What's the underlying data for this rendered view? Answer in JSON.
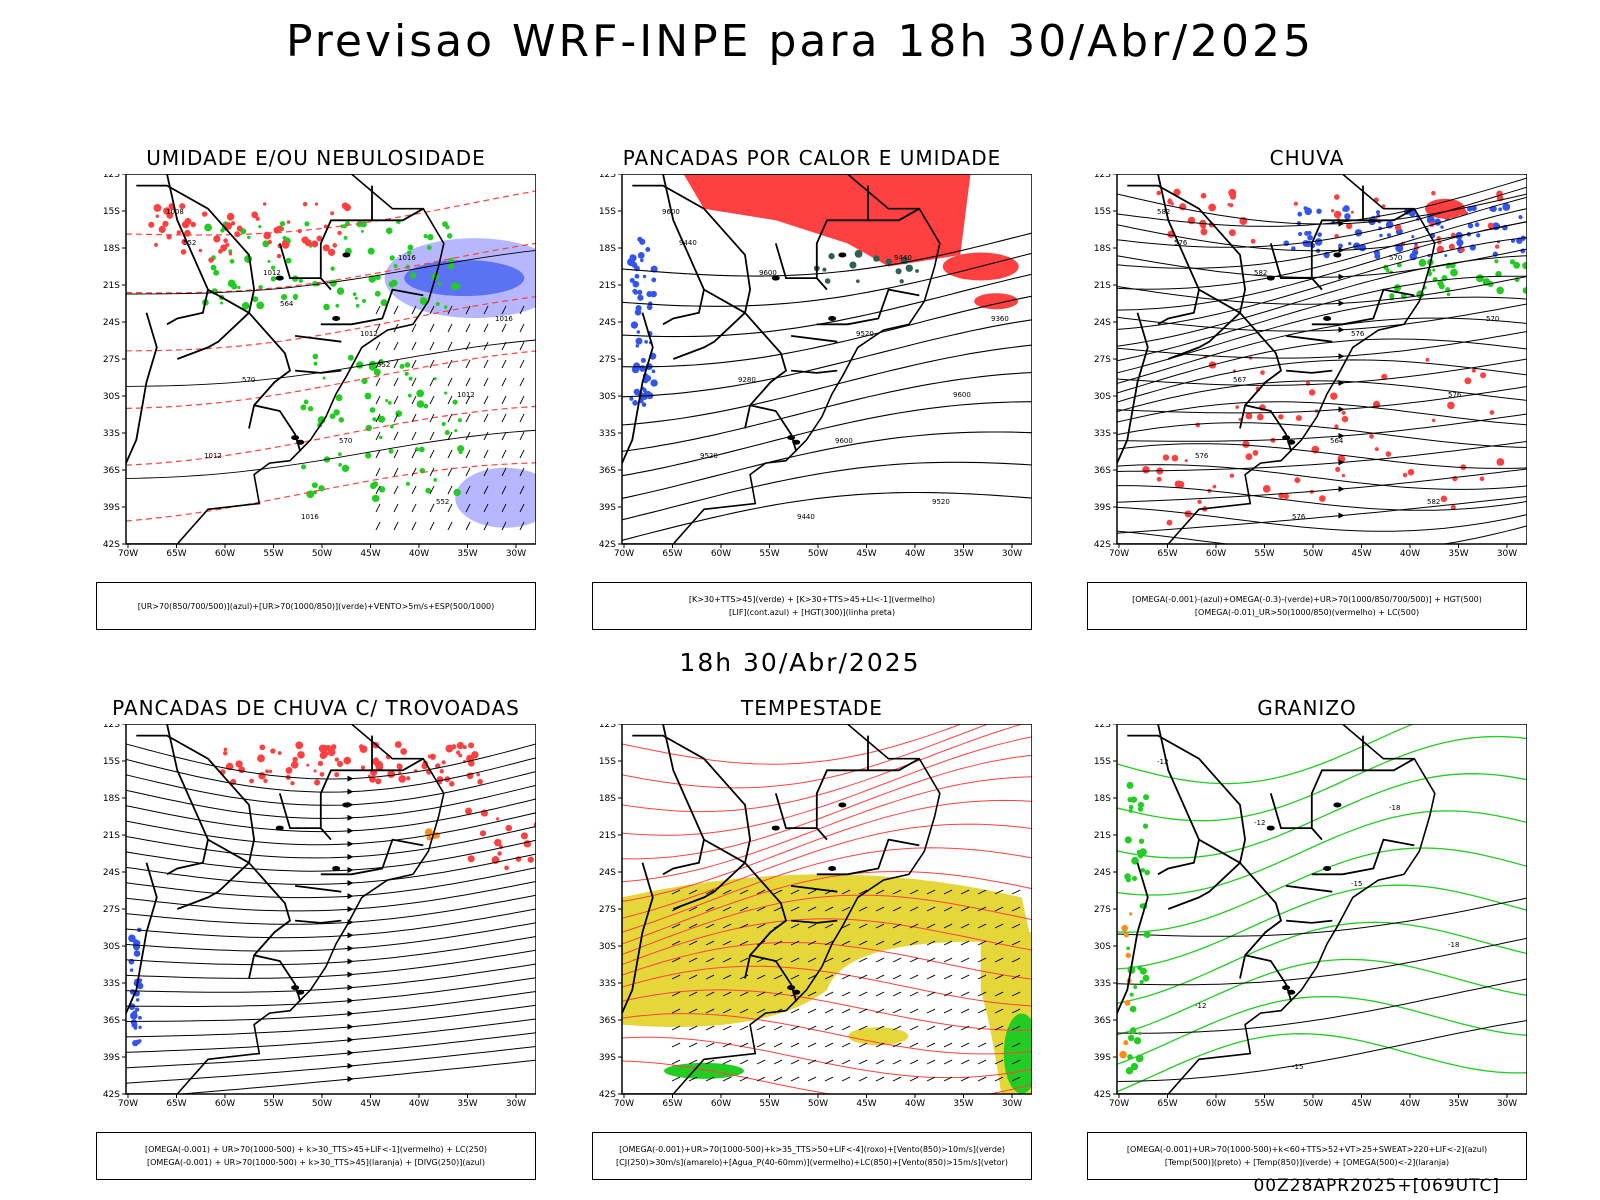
{
  "header": {
    "title": "Previsao WRF-INPE  para 18h 30/Abr/2025",
    "subtitle": "18h 30/Abr/2025",
    "footer": "00Z28APR2025+[069UTC]"
  },
  "axes": {
    "lat_labels": [
      "12S",
      "15S",
      "18S",
      "21S",
      "24S",
      "27S",
      "30S",
      "33S",
      "36S",
      "39S",
      "42S"
    ],
    "lon_labels": [
      "70W",
      "65W",
      "60W",
      "55W",
      "50W",
      "45W",
      "40W",
      "35W",
      "30W"
    ]
  },
  "colors": {
    "red": "#ff4040",
    "green": "#22cc22",
    "blue": "#3355ee",
    "lightblue": "#9999ff",
    "yellow": "#e5d73a",
    "orange": "#ff8c1a",
    "darkgreen": "#2f5f55"
  },
  "panels": [
    {
      "title": "UMIDADE E/OU NEBULOSIDADE",
      "legend": [
        "[UR>70(850/700/500)](azul)+[UR>70(1000/850)](verde)+VENTO>5m/s+ESP(500/1000)"
      ],
      "labels": [
        "1008",
        "1012",
        "1012",
        "1012",
        "1012",
        "1016",
        "1016",
        "1016",
        "570",
        "570",
        "552",
        "552",
        "564",
        "552"
      ]
    },
    {
      "title": "PANCADAS POR CALOR E UMIDADE",
      "legend": [
        "[K>30+TTS>45](verde) + [K>30+TTS>45+LI<-1](vermelho)",
        "[LIF](cont.azul) + [HGT(300)](linha preta)"
      ],
      "labels": [
        "9600",
        "9600",
        "9520",
        "9600",
        "9520",
        "9440",
        "9440",
        "9360",
        "9280",
        "9600",
        "9520",
        "9440"
      ]
    },
    {
      "title": "CHUVA",
      "legend": [
        "[OMEGA(-0.001)-(azul)+OMEGA(-0.3)-(verde)+UR>70(1000/850/700/500)] + HGT(500)",
        "[OMEGA(-0.01)_UR>50(1000/850)(vermelho) + LC(500)"
      ],
      "labels": [
        "582",
        "582",
        "576",
        "576",
        "576",
        "576",
        "570",
        "570",
        "567",
        "564",
        "582",
        "576"
      ]
    },
    {
      "title": "PANCADAS DE CHUVA C/ TROVOADAS",
      "legend": [
        "[OMEGA(-0.001) + UR>70(1000-500) + k>30_TTS>45+LIF<-1](vermelho) + LC(250)",
        "[OMEGA(-0.001) + UR>70(1000-500) + k>30_TTS>45](laranja) + [DIVG(250)](azul)"
      ],
      "labels": []
    },
    {
      "title": "TEMPESTADE",
      "legend": [
        "[OMEGA(-0.001)+UR>70(1000-500)+k>35_TTS>50+LIF<-4](roxo)+[Vento(850)>10m/s](verde)",
        "[CJ(250)>30m/s](amarelo)+[Agua_P(40-60mm)](vermelho)+LC(850)+[Vento(850)>15m/s](vetor)"
      ],
      "labels": []
    },
    {
      "title": "GRANIZO",
      "legend": [
        "[OMEGA(-0.001)+UR>70(1000-500)+k<60+TTS>52+VT>25+SWEAT>220+LIF<-2](azul)",
        "[Temp(500)](preto) + [Temp(850)](verde) + [OMEGA(500)<-2](laranja)"
      ],
      "labels": [
        "-12",
        "-12",
        "-15",
        "-18",
        "-12",
        "-15",
        "-18"
      ]
    }
  ]
}
